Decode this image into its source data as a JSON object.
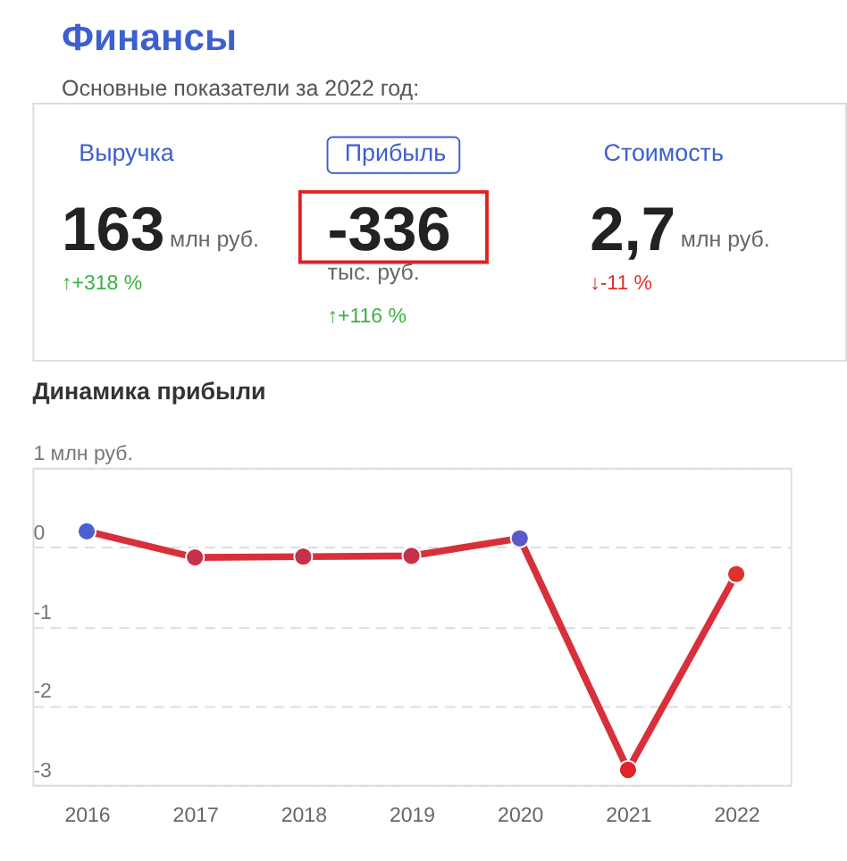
{
  "chart_data": [
    {
      "type": "other",
      "title": "Финансы",
      "subtitle": "Основные показатели за 2022 год:",
      "annotations": [
        "Выручка",
        "Прибыль",
        "Стоимость",
        "163",
        "млн руб.",
        "-336",
        "тыс. руб.",
        "2,7",
        "млн руб.",
        "↑+318 %",
        "↑+116 %",
        "↓-11 %"
      ]
    },
    {
      "type": "line",
      "title": "Динамика прибыли",
      "categories": [
        "2016",
        "2017",
        "2018",
        "2019",
        "2020",
        "2021",
        "2022"
      ],
      "series": [
        {
          "color": "#d8303a",
          "colors": [
            "#4a5fd0",
            "#c8304a",
            "#c8304a",
            "#c8304a",
            "#5a5ac8",
            "#e0252a",
            "#e0302a"
          ],
          "values": [
            0.2,
            -0.13,
            -0.12,
            -0.11,
            0.11,
            -2.81,
            -0.34
          ]
        }
      ],
      "ylim": [
        -3,
        1
      ],
      "yticks": [
        {
          "value": 1,
          "label": "1 млн руб."
        },
        0,
        -1,
        -2,
        -3
      ],
      "grid": "y",
      "line_style": "solid",
      "marker": "circle"
    }
  ]
}
